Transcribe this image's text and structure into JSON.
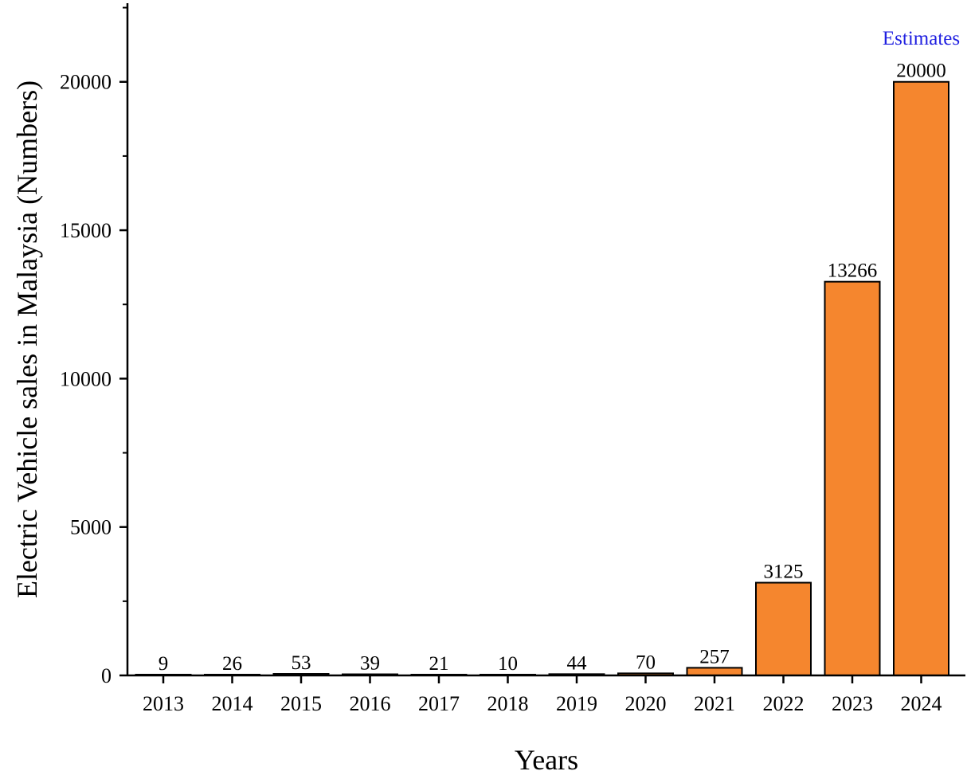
{
  "chart_data": {
    "type": "bar",
    "title": "",
    "xlabel": "Years",
    "ylabel": "Electric Vehicle sales in Malaysia (Numbers)",
    "categories": [
      "2013",
      "2014",
      "2015",
      "2016",
      "2017",
      "2018",
      "2019",
      "2020",
      "2021",
      "2022",
      "2023",
      "2024"
    ],
    "values": [
      9,
      26,
      53,
      39,
      21,
      10,
      44,
      70,
      257,
      3125,
      13266,
      20000
    ],
    "ylim": [
      0,
      22650
    ],
    "yticks": [
      0,
      5000,
      10000,
      15000,
      20000
    ],
    "grid": false,
    "bar_color": "#F5862E",
    "annotation": {
      "text": "Estimates",
      "category": "2024",
      "color": "#1F1FE0"
    }
  }
}
